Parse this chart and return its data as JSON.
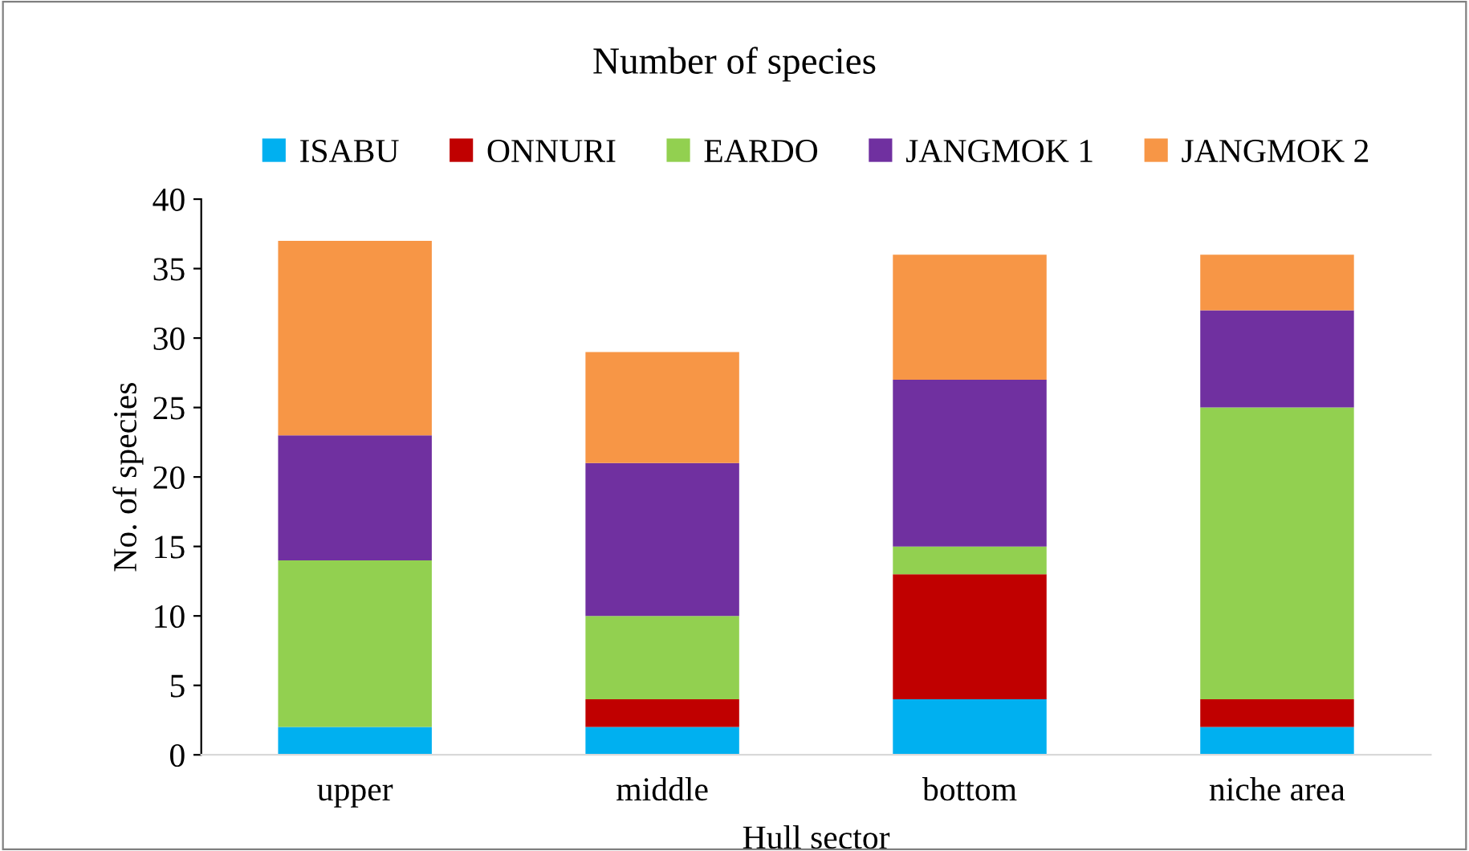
{
  "chart_data": {
    "type": "bar",
    "stacked": true,
    "title": "Number of species",
    "xlabel": "Hull sector",
    "ylabel": "No. of species",
    "categories": [
      "upper",
      "middle",
      "bottom",
      "niche area"
    ],
    "series": [
      {
        "name": "ISABU",
        "color": "#00b0f0",
        "values": [
          2,
          2,
          4,
          2
        ]
      },
      {
        "name": "ONNURI",
        "color": "#c00000",
        "values": [
          0,
          2,
          9,
          2
        ]
      },
      {
        "name": "EARDO",
        "color": "#92d050",
        "values": [
          12,
          6,
          2,
          21
        ]
      },
      {
        "name": "JANGMOK 1",
        "color": "#7030a0",
        "values": [
          9,
          11,
          12,
          7
        ]
      },
      {
        "name": "JANGMOK 2",
        "color": "#f79646",
        "values": [
          14,
          8,
          9,
          4
        ]
      }
    ],
    "ylim": [
      0,
      40
    ],
    "yticks": [
      0,
      5,
      10,
      15,
      20,
      25,
      30,
      35,
      40
    ],
    "grid": false,
    "legend": "top"
  }
}
